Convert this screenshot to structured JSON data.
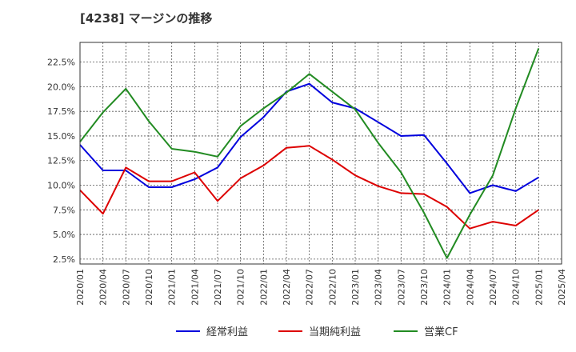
{
  "chart_data": {
    "type": "line",
    "title": "[4238]  マージンの推移",
    "xlabel": "",
    "ylabel": "",
    "x": [
      "2020/01",
      "2020/04",
      "2020/07",
      "2020/10",
      "2021/01",
      "2021/04",
      "2021/07",
      "2021/10",
      "2022/01",
      "2022/04",
      "2022/07",
      "2022/10",
      "2023/01",
      "2023/04",
      "2023/07",
      "2023/10",
      "2024/01",
      "2024/04",
      "2024/07",
      "2024/10",
      "2025/01"
    ],
    "x_ticks": [
      "2020/01",
      "2020/04",
      "2020/07",
      "2020/10",
      "2021/01",
      "2021/04",
      "2021/07",
      "2021/10",
      "2022/01",
      "2022/04",
      "2022/07",
      "2022/10",
      "2023/01",
      "2023/04",
      "2023/07",
      "2023/10",
      "2024/01",
      "2024/04",
      "2024/07",
      "2024/10",
      "2025/01",
      "2025/04"
    ],
    "y_ticks": [
      "2.5%",
      "5.0%",
      "7.5%",
      "10.0%",
      "12.5%",
      "15.0%",
      "17.5%",
      "20.0%",
      "22.5%"
    ],
    "ylim": [
      2.0,
      24.5
    ],
    "grid": true,
    "legend_position": "bottom",
    "series": [
      {
        "name": "経常利益",
        "color": "#0000dd",
        "values": [
          14.1,
          11.5,
          11.5,
          9.8,
          9.8,
          10.6,
          11.8,
          14.9,
          16.9,
          19.5,
          20.3,
          18.4,
          17.8,
          16.4,
          15.0,
          15.1,
          12.2,
          9.2,
          10.0,
          9.4,
          10.8
        ]
      },
      {
        "name": "当期純利益",
        "color": "#dd0000",
        "values": [
          9.5,
          7.1,
          11.8,
          10.4,
          10.4,
          11.3,
          8.4,
          10.7,
          12.0,
          13.8,
          14.0,
          12.6,
          11.0,
          9.9,
          9.2,
          9.1,
          7.8,
          5.6,
          6.3,
          5.9,
          7.5
        ]
      },
      {
        "name": "営業CF",
        "color": "#228b22",
        "values": [
          14.4,
          17.4,
          19.8,
          16.5,
          13.7,
          13.4,
          12.9,
          16.0,
          17.8,
          19.4,
          21.3,
          19.5,
          17.7,
          14.3,
          11.3,
          7.2,
          2.6,
          7.0,
          11.0,
          17.8,
          23.9
        ]
      }
    ]
  }
}
